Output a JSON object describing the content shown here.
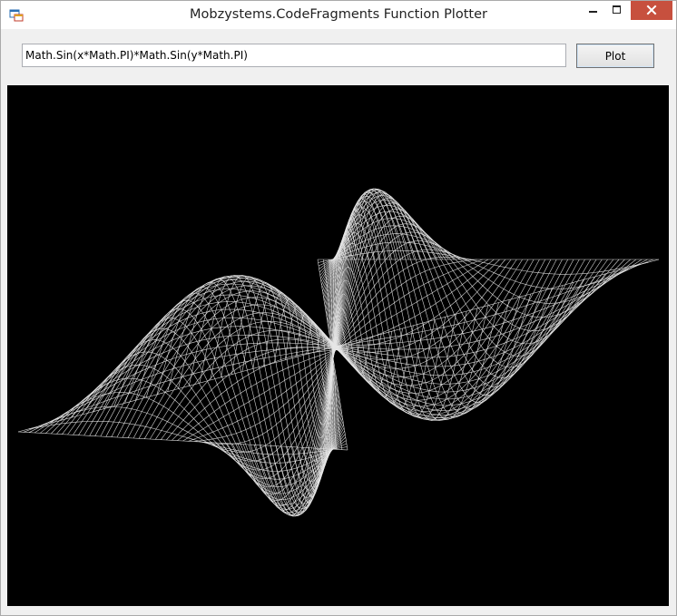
{
  "window": {
    "title": "Mobzystems.CodeFragments Function Plotter",
    "icons": {
      "app": "app-window-icon",
      "minimize": "minimize-icon",
      "maximize": "maximize-icon",
      "close": "close-icon"
    },
    "colors": {
      "close": "#c7503e",
      "plot_background": "#000000",
      "mesh": "#e6e6e6"
    }
  },
  "toolbar": {
    "function_value": "Math.Sin(x*Math.PI)*Math.Sin(y*Math.PI)",
    "plot_label": "Plot"
  },
  "plot": {
    "type": "3d-wireframe-surface",
    "function": "Math.Sin(x*Math.PI)*Math.Sin(y*Math.PI)",
    "x_range": [
      -1,
      1
    ],
    "y_range": [
      -1,
      1
    ],
    "grid_lines": 60
  }
}
